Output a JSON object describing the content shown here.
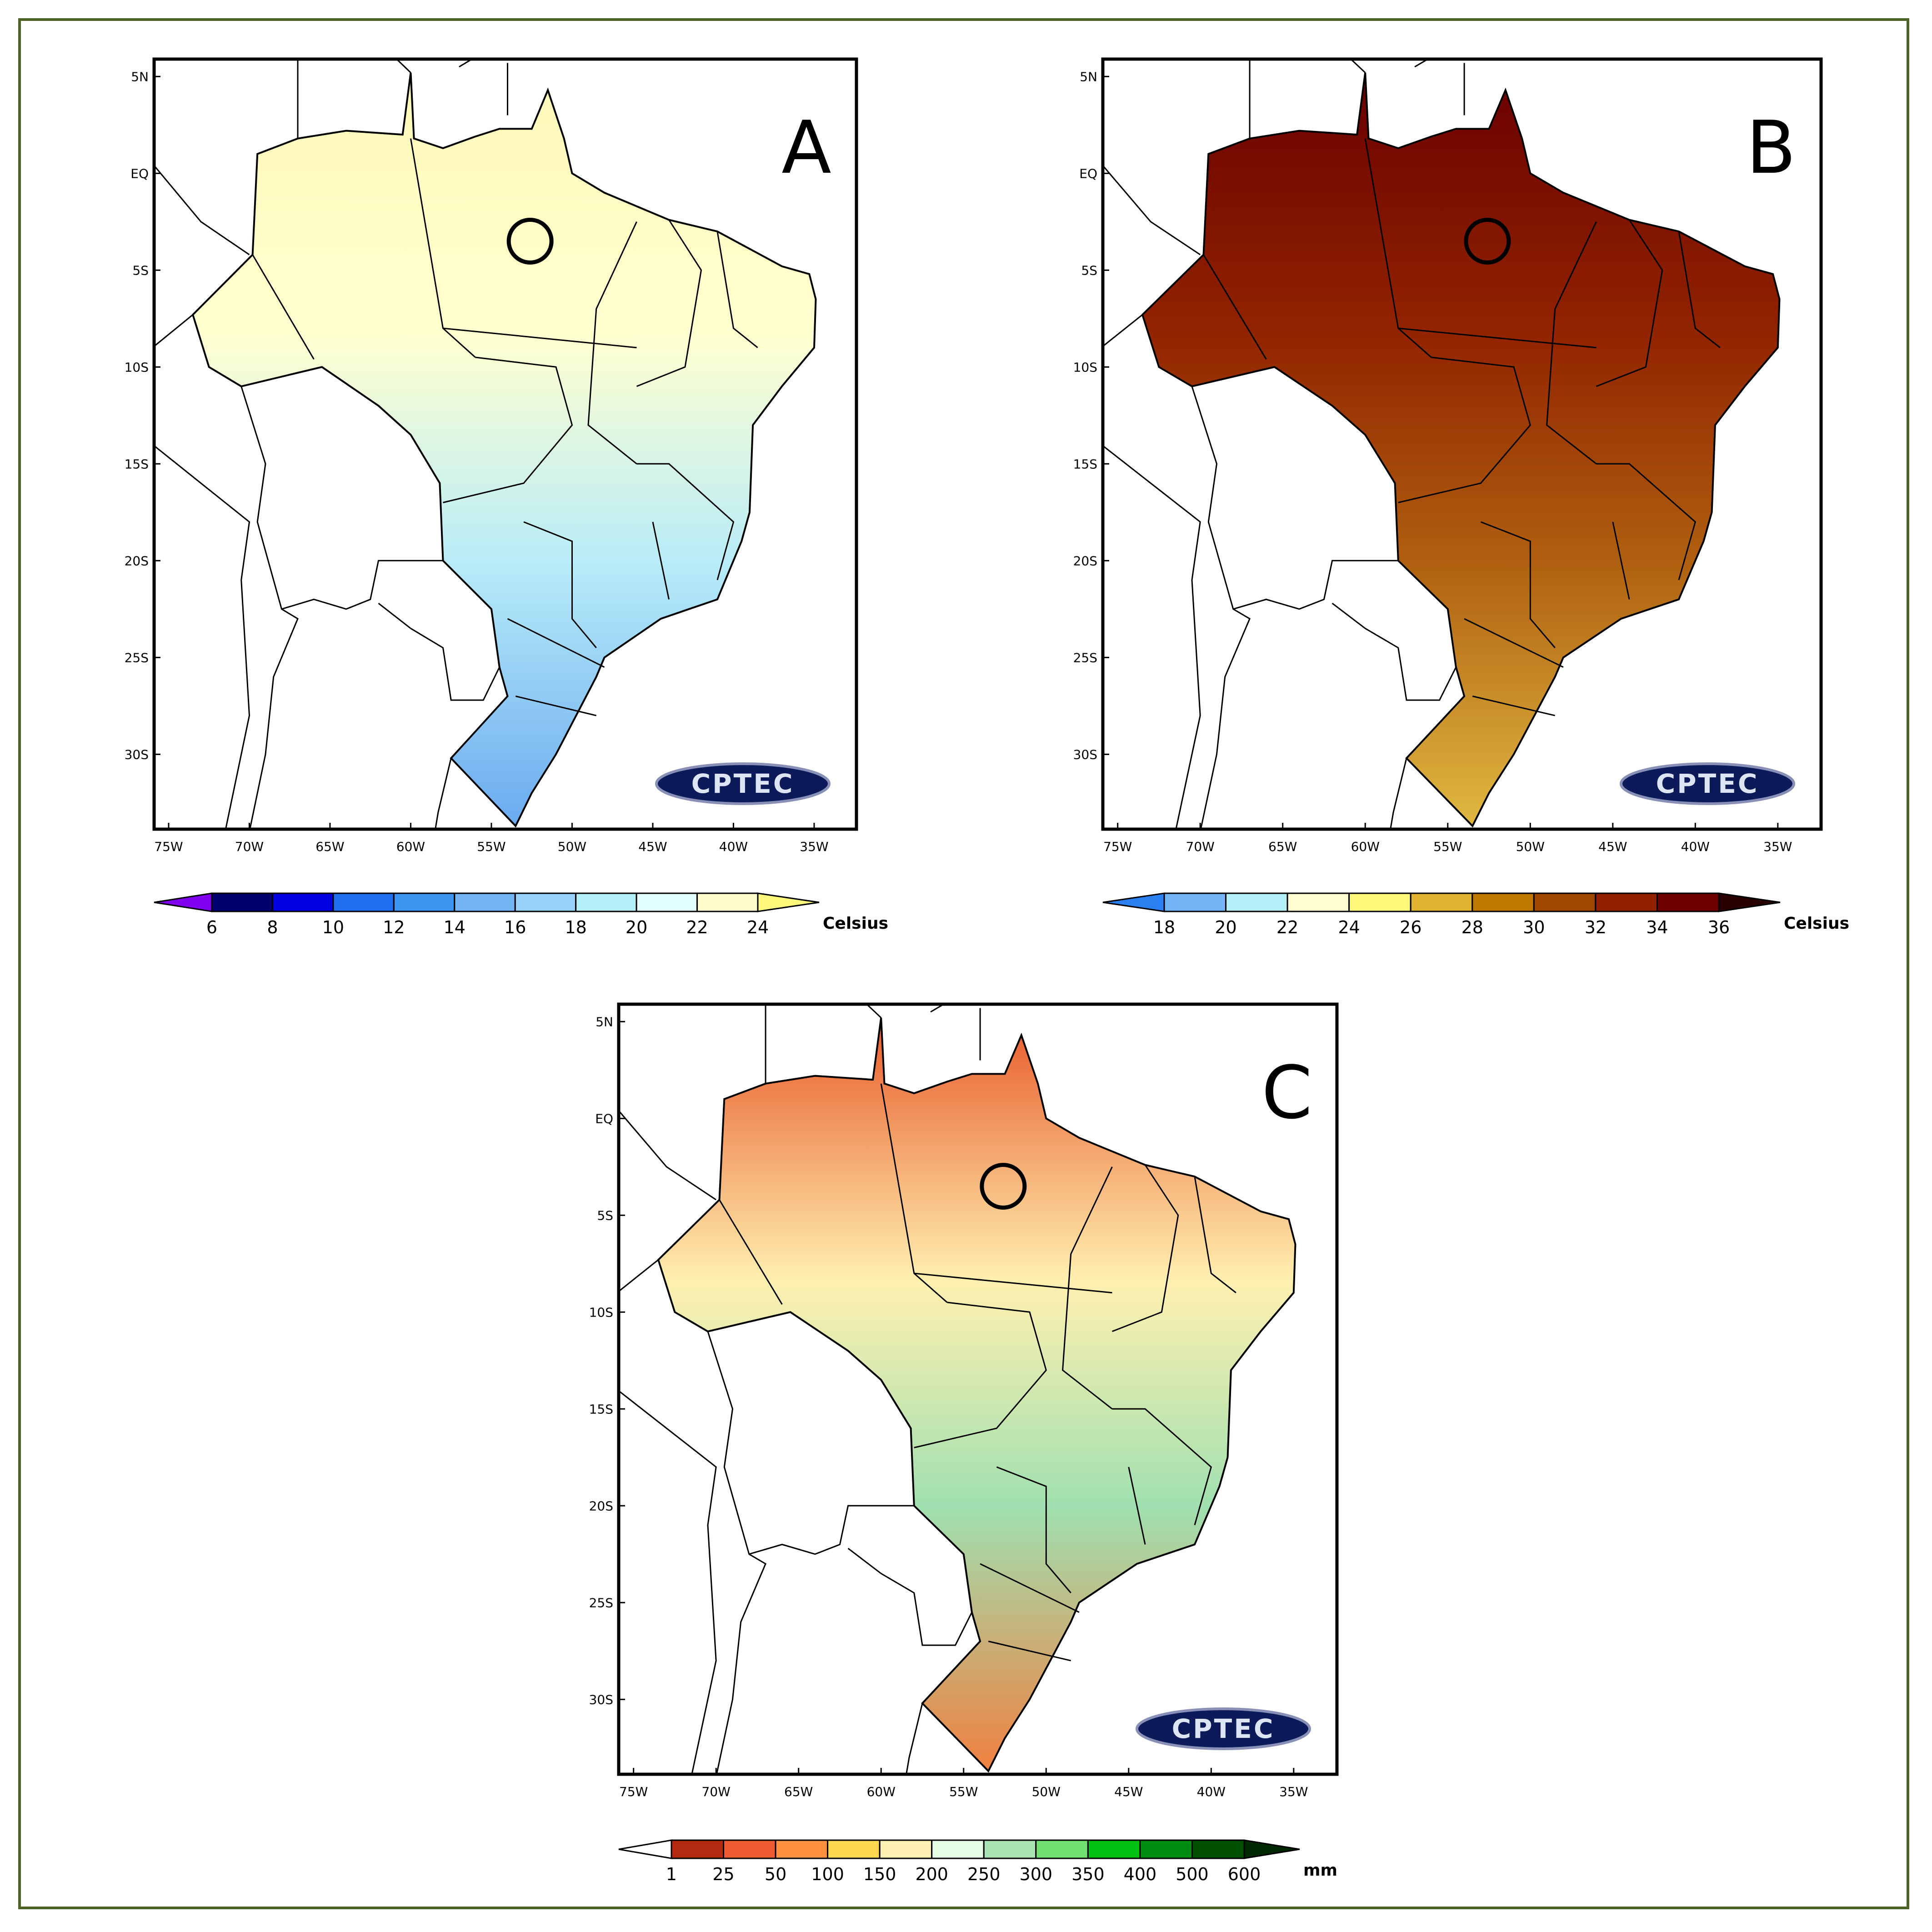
{
  "figure": {
    "lon_ticks": [
      "75W",
      "70W",
      "65W",
      "60W",
      "55W",
      "50W",
      "45W",
      "40W",
      "35W"
    ],
    "lat_ticks": [
      "5N",
      "EQ",
      "5S",
      "10S",
      "15S",
      "20S",
      "25S",
      "30S"
    ],
    "logo_text": "CPTEC",
    "panels": [
      {
        "letter": "A",
        "variable": "temperature",
        "fill_top": "#fff8b8",
        "fill_mid": "#ffffd0",
        "fill_low": "#b8ecf8",
        "fill_bottom": "#6aaaf0",
        "legend": {
          "labels": [
            "6",
            "8",
            "10",
            "12",
            "14",
            "16",
            "18",
            "20",
            "22",
            "24"
          ],
          "unit": "Celsius",
          "colors": [
            "#000070",
            "#0000e0",
            "#2070f0",
            "#3c96f0",
            "#72b4f4",
            "#96d2f8",
            "#b4f0f8",
            "#e2fefe",
            "#fffccc"
          ],
          "left_arrow": "#8000f0",
          "right_arrow": "#fff87a"
        }
      },
      {
        "letter": "B",
        "variable": "temperature",
        "fill_top": "#6a0000",
        "fill_mid": "#922400",
        "fill_low": "#b06010",
        "fill_bottom": "#e0b840",
        "legend": {
          "labels": [
            "18",
            "20",
            "22",
            "24",
            "26",
            "28",
            "30",
            "32",
            "34",
            "36"
          ],
          "unit": "Celsius",
          "colors": [
            "#72b4f4",
            "#b4f0f8",
            "#fffcd0",
            "#fff87a",
            "#e0b430",
            "#c07800",
            "#a04800",
            "#902000",
            "#6e0000"
          ],
          "left_arrow": "#2a80f0",
          "right_arrow": "#280000"
        }
      },
      {
        "letter": "C",
        "variable": "precipitation",
        "fill_top": "#e85a2a",
        "fill_mid": "#fff0b0",
        "fill_low": "#a0e0b0",
        "fill_bottom": "#f08040",
        "legend": {
          "labels": [
            "1",
            "25",
            "50",
            "100",
            "150",
            "200",
            "250",
            "300",
            "350",
            "400",
            "500",
            "600"
          ],
          "unit": "mm",
          "colors": [
            "#b42a10",
            "#f05a32",
            "#ff9040",
            "#ffd850",
            "#fff0b4",
            "#e6fee6",
            "#a8e4b4",
            "#70e070",
            "#00c010",
            "#008c10",
            "#005000"
          ],
          "left_arrow": "#ffffff",
          "right_arrow": "#002800"
        }
      }
    ]
  }
}
